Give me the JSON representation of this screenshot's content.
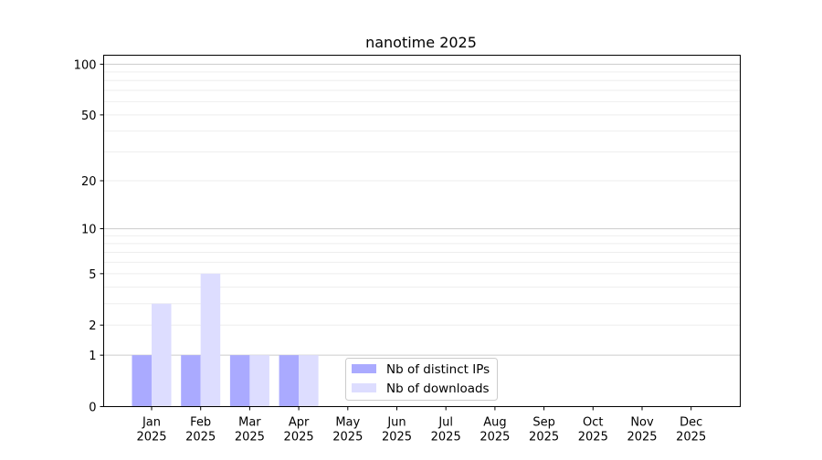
{
  "chart_data": {
    "type": "bar",
    "title": "nanotime 2025",
    "xlabel": "",
    "ylabel": "",
    "yscale": "symlog (log10(1+y))",
    "ylim": [
      0,
      113
    ],
    "yticks": [
      0,
      1,
      2,
      5,
      10,
      20,
      50,
      100
    ],
    "grid": true,
    "legend_placement": "lower-center",
    "categories": [
      "Jan\n2025",
      "Feb\n2025",
      "Mar\n2025",
      "Apr\n2025",
      "May\n2025",
      "Jun\n2025",
      "Jul\n2025",
      "Aug\n2025",
      "Sep\n2025",
      "Oct\n2025",
      "Nov\n2025",
      "Dec\n2025"
    ],
    "series": [
      {
        "name": "Nb of distinct IPs",
        "color": "#aaaaff",
        "values": [
          1,
          1,
          1,
          1,
          0,
          0,
          0,
          0,
          0,
          0,
          0,
          0
        ]
      },
      {
        "name": "Nb of downloads",
        "color": "#ddddff",
        "values": [
          3,
          5,
          1,
          1,
          0,
          0,
          0,
          0,
          0,
          0,
          0,
          0
        ]
      }
    ]
  }
}
